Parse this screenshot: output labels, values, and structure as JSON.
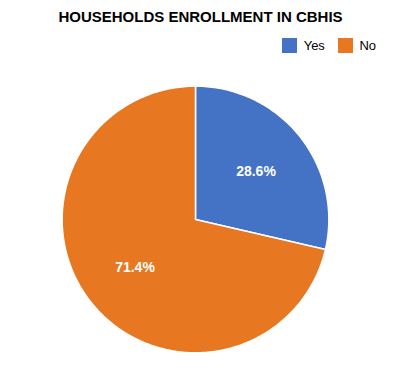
{
  "chart_data": {
    "type": "pie",
    "title": "HOUSEHOLDS ENROLLMENT IN CBHIS",
    "categories": [
      "Yes",
      "No"
    ],
    "values": [
      28.6,
      71.4
    ],
    "value_labels": [
      "28.6%",
      "71.4%"
    ],
    "colors": [
      "#4472C4",
      "#E87722"
    ],
    "data_labels": true,
    "legend": "upper right"
  }
}
